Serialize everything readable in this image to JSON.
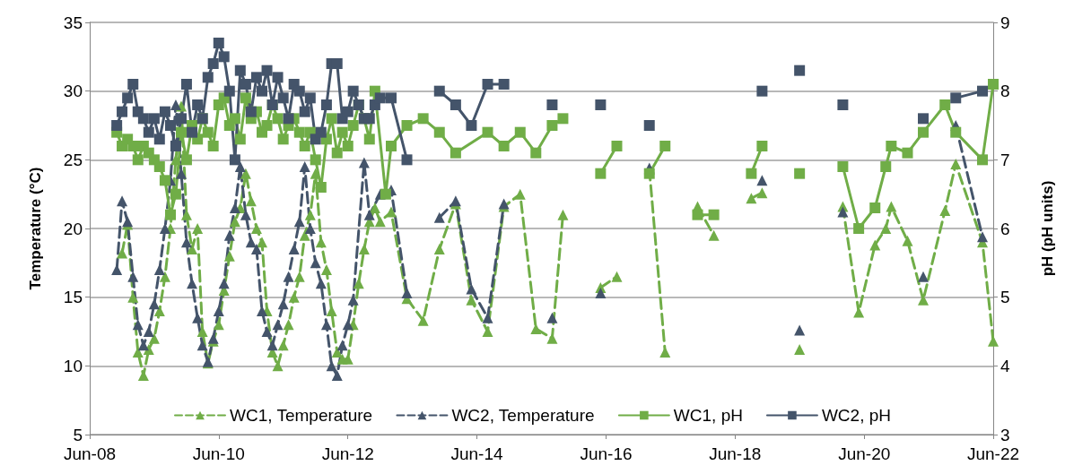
{
  "chart_data": {
    "type": "line",
    "xlabel": null,
    "ylabel": "Temperature (°C)",
    "y2label": "pH (pH units)",
    "xlim": [
      "2008-06",
      "2022-06"
    ],
    "xticks": [
      {
        "value": "2008-06",
        "label": "Jun-08"
      },
      {
        "value": "2010-06",
        "label": "Jun-10"
      },
      {
        "value": "2012-06",
        "label": "Jun-12"
      },
      {
        "value": "2014-06",
        "label": "Jun-14"
      },
      {
        "value": "2016-06",
        "label": "Jun-16"
      },
      {
        "value": "2018-06",
        "label": "Jun-18"
      },
      {
        "value": "2020-06",
        "label": "Jun-20"
      },
      {
        "value": "2022-06",
        "label": "Jun-22"
      }
    ],
    "ylim": [
      5,
      35
    ],
    "yticks": [
      5,
      10,
      15,
      20,
      25,
      30,
      35
    ],
    "y2lim": [
      3,
      9
    ],
    "y2ticks": [
      3,
      4,
      5,
      6,
      7,
      8,
      9
    ],
    "grid": "y",
    "legend": "bottom",
    "series": [
      {
        "name": "WC1, Temperature",
        "color": "#70ad47",
        "marker": "triangle",
        "line_style": "dashed",
        "x": [
          "2008-12",
          "2009-01",
          "2009-02",
          "2009-03",
          "2009-04",
          "2009-05",
          "2009-06",
          "2009-07",
          "2009-08",
          "2009-09",
          "2009-10",
          "2009-11",
          "2009-12",
          "2010-01",
          "2010-02",
          "2010-03",
          "2010-04",
          "2010-05",
          "2010-06",
          "2010-07",
          "2010-08",
          "2010-09",
          "2010-10",
          "2010-11",
          "2010-12",
          "2011-01",
          "2011-02",
          "2011-03",
          "2011-04",
          "2011-05",
          "2011-06",
          "2011-07",
          "2011-08",
          "2011-09",
          "2011-10",
          "2011-11",
          "2011-12",
          "2012-01",
          "2012-02",
          "2012-03",
          "2012-04",
          "2012-05",
          "2012-06",
          "2012-07",
          "2012-08",
          "2012-09",
          "2012-10",
          "2012-11",
          "2012-12",
          "2013-02",
          "2013-05",
          "2013-08",
          "2013-11",
          "2014-02",
          "2014-05",
          "2014-08",
          "2014-11",
          "2015-02",
          "2015-05",
          "2015-08",
          "2015-10",
          "2016-01",
          "2016-05",
          "2016-08",
          "2016-11",
          "2017-02",
          "2017-05",
          "2017-08",
          "2017-11",
          "2018-02",
          "2018-05",
          "2018-09",
          "2018-11",
          "2019-02",
          "2019-06",
          "2019-10",
          "2020-02",
          "2020-05",
          "2020-08",
          "2020-10",
          "2020-11",
          "2021-02",
          "2021-05",
          "2021-09",
          "2021-11",
          "2022-04",
          "2022-06"
        ],
        "values": [
          18.2,
          20.3,
          15.0,
          11.0,
          9.3,
          11.2,
          12.0,
          14.0,
          16.5,
          20.0,
          25.0,
          28.9,
          21.0,
          18.5,
          20.0,
          12.5,
          10.2,
          11.8,
          13.0,
          15.5,
          18.0,
          20.5,
          21.5,
          24.0,
          22.0,
          20.0,
          19.0,
          14.0,
          11.0,
          10.0,
          11.5,
          13.0,
          15.0,
          16.5,
          19.5,
          21.0,
          24.0,
          19.0,
          17.0,
          14.0,
          11.0,
          10.5,
          10.5,
          13.0,
          16.0,
          18.5,
          20.5,
          21.5,
          20.5,
          21.2,
          14.9,
          13.3,
          18.5,
          21.8,
          14.8,
          12.5,
          21.6,
          22.5,
          12.7,
          12.0,
          21.0,
          null,
          15.7,
          16.5,
          null,
          24.3,
          11.0,
          null,
          21.6,
          19.5,
          null,
          22.2,
          22.6,
          null,
          11.2,
          null,
          21.6,
          13.9,
          18.8,
          20.0,
          21.6,
          19.1,
          14.8,
          21.3,
          24.7,
          19.0,
          11.8
        ]
      },
      {
        "name": "WC2, Temperature",
        "color": "#44546a",
        "marker": "triangle",
        "line_style": "dashed",
        "x": [
          "2008-11",
          "2008-12",
          "2009-01",
          "2009-02",
          "2009-03",
          "2009-04",
          "2009-05",
          "2009-06",
          "2009-07",
          "2009-08",
          "2009-09",
          "2009-10",
          "2009-11",
          "2009-12",
          "2010-01",
          "2010-02",
          "2010-03",
          "2010-04",
          "2010-05",
          "2010-06",
          "2010-07",
          "2010-08",
          "2010-09",
          "2010-10",
          "2010-11",
          "2010-12",
          "2011-01",
          "2011-02",
          "2011-03",
          "2011-04",
          "2011-05",
          "2011-06",
          "2011-07",
          "2011-08",
          "2011-09",
          "2011-10",
          "2011-11",
          "2011-12",
          "2012-01",
          "2012-02",
          "2012-03",
          "2012-04",
          "2012-05",
          "2012-06",
          "2012-07",
          "2012-09",
          "2012-10",
          "2012-12",
          "2013-02",
          "2013-05",
          "2013-08",
          "2013-11",
          "2014-02",
          "2014-05",
          "2014-08",
          "2014-11",
          "2015-03",
          "2015-08",
          "2016-01",
          "2016-05",
          "2016-09",
          "2017-02",
          "2018-01",
          "2018-11",
          "2019-03",
          "2019-06",
          "2019-10",
          "2020-02",
          "2020-10",
          "2021-05",
          "2021-08",
          "2021-11",
          "2022-04"
        ],
        "values": [
          17.0,
          22.0,
          20.5,
          16.5,
          13.0,
          11.5,
          12.5,
          14.5,
          17.0,
          20.0,
          23.5,
          29.0,
          24.0,
          19.0,
          16.0,
          13.5,
          11.5,
          10.3,
          12.0,
          14.0,
          16.0,
          19.5,
          21.5,
          24.5,
          21.0,
          19.0,
          18.5,
          14.0,
          12.5,
          11.5,
          13.0,
          14.5,
          16.5,
          18.5,
          20.5,
          24.5,
          20.0,
          17.5,
          16.0,
          13.0,
          10.0,
          9.3,
          11.5,
          13.0,
          14.8,
          24.8,
          21.0,
          22.5,
          22.8,
          15.3,
          null,
          20.8,
          22.0,
          15.6,
          13.5,
          21.8,
          null,
          13.5,
          null,
          15.3,
          null,
          24.4,
          null,
          23.5,
          null,
          12.6,
          null,
          21.2,
          null,
          16.5,
          null,
          27.5,
          19.4
        ]
      },
      {
        "name": "WC1, pH",
        "color": "#70ad47",
        "marker": "square",
        "line_style": "solid",
        "axis": "y2",
        "x": [
          "2008-11",
          "2008-12",
          "2009-01",
          "2009-02",
          "2009-03",
          "2009-04",
          "2009-05",
          "2009-06",
          "2009-07",
          "2009-08",
          "2009-09",
          "2009-10",
          "2009-11",
          "2009-12",
          "2010-01",
          "2010-02",
          "2010-03",
          "2010-04",
          "2010-05",
          "2010-06",
          "2010-07",
          "2010-08",
          "2010-09",
          "2010-10",
          "2010-11",
          "2010-12",
          "2011-01",
          "2011-02",
          "2011-03",
          "2011-04",
          "2011-05",
          "2011-06",
          "2011-07",
          "2011-08",
          "2011-09",
          "2011-10",
          "2011-11",
          "2011-12",
          "2012-01",
          "2012-02",
          "2012-03",
          "2012-04",
          "2012-05",
          "2012-06",
          "2012-07",
          "2012-08",
          "2012-09",
          "2012-10",
          "2012-11",
          "2013-01",
          "2013-02",
          "2013-05",
          "2013-08",
          "2013-11",
          "2014-02",
          "2014-08",
          "2014-11",
          "2015-02",
          "2015-05",
          "2015-08",
          "2015-10",
          "2016-01",
          "2016-05",
          "2016-08",
          "2016-11",
          "2017-02",
          "2017-05",
          "2017-08",
          "2017-11",
          "2018-02",
          "2018-05",
          "2018-09",
          "2018-11",
          "2019-02",
          "2019-06",
          "2019-10",
          "2020-02",
          "2020-05",
          "2020-08",
          "2020-10",
          "2020-11",
          "2021-02",
          "2021-05",
          "2021-09",
          "2021-11",
          "2022-04",
          "2022-06"
        ],
        "values": [
          7.4,
          7.2,
          7.3,
          7.2,
          7.0,
          7.2,
          7.1,
          7.0,
          6.9,
          6.7,
          6.2,
          6.5,
          7.4,
          7.0,
          7.5,
          7.3,
          7.6,
          7.4,
          7.2,
          7.8,
          7.9,
          7.5,
          7.6,
          7.3,
          7.9,
          7.6,
          7.7,
          7.4,
          7.5,
          7.8,
          7.6,
          7.3,
          7.5,
          7.6,
          7.4,
          7.2,
          7.4,
          7.0,
          6.6,
          7.3,
          7.6,
          7.1,
          7.4,
          7.2,
          7.5,
          7.8,
          7.6,
          7.3,
          8.0,
          6.5,
          7.2,
          7.5,
          7.6,
          7.4,
          7.1,
          7.4,
          7.2,
          7.4,
          7.1,
          7.5,
          7.6,
          null,
          6.8,
          7.2,
          null,
          6.8,
          7.2,
          null,
          6.2,
          6.2,
          null,
          6.8,
          7.2,
          null,
          6.8,
          null,
          6.9,
          6.0,
          6.3,
          6.9,
          7.2,
          7.1,
          7.4,
          7.8,
          7.4,
          7.0,
          8.1
        ]
      },
      {
        "name": "WC2, pH",
        "color": "#44546a",
        "marker": "square",
        "line_style": "solid",
        "axis": "y2",
        "x": [
          "2008-11",
          "2008-12",
          "2009-01",
          "2009-02",
          "2009-03",
          "2009-04",
          "2009-05",
          "2009-06",
          "2009-07",
          "2009-08",
          "2009-09",
          "2009-10",
          "2009-11",
          "2009-12",
          "2010-01",
          "2010-02",
          "2010-03",
          "2010-04",
          "2010-05",
          "2010-06",
          "2010-07",
          "2010-08",
          "2010-09",
          "2010-10",
          "2010-11",
          "2010-12",
          "2011-01",
          "2011-02",
          "2011-03",
          "2011-04",
          "2011-05",
          "2011-06",
          "2011-07",
          "2011-08",
          "2011-09",
          "2011-10",
          "2011-11",
          "2011-12",
          "2012-01",
          "2012-02",
          "2012-03",
          "2012-04",
          "2012-05",
          "2012-06",
          "2012-07",
          "2012-08",
          "2012-09",
          "2012-10",
          "2012-11",
          "2012-12",
          "2013-02",
          "2013-05",
          "2013-08",
          "2013-11",
          "2014-02",
          "2014-05",
          "2014-08",
          "2014-11",
          "2015-03",
          "2015-08",
          "2016-01",
          "2016-05",
          "2016-09",
          "2017-02",
          "2018-01",
          "2018-11",
          "2019-03",
          "2019-06",
          "2019-10",
          "2020-02",
          "2020-10",
          "2021-05",
          "2021-08",
          "2021-11",
          "2022-04"
        ],
        "values": [
          7.5,
          7.7,
          7.9,
          8.1,
          7.7,
          7.6,
          7.4,
          7.6,
          7.3,
          7.7,
          7.5,
          7.2,
          7.6,
          8.1,
          7.4,
          7.8,
          7.6,
          8.2,
          8.4,
          8.7,
          8.5,
          8.0,
          7.0,
          8.3,
          8.1,
          7.7,
          8.2,
          8.0,
          8.3,
          7.8,
          8.2,
          7.9,
          7.6,
          8.1,
          8.0,
          7.7,
          7.9,
          7.3,
          7.4,
          7.8,
          8.4,
          8.4,
          7.6,
          7.7,
          8.0,
          7.8,
          7.6,
          7.6,
          7.8,
          7.9,
          7.9,
          7.0,
          null,
          8.0,
          7.8,
          7.5,
          8.1,
          8.1,
          null,
          7.8,
          null,
          7.8,
          null,
          7.5,
          null,
          8.0,
          null,
          8.3,
          null,
          7.8,
          null,
          7.6,
          null,
          7.9,
          8.0
        ]
      }
    ]
  }
}
